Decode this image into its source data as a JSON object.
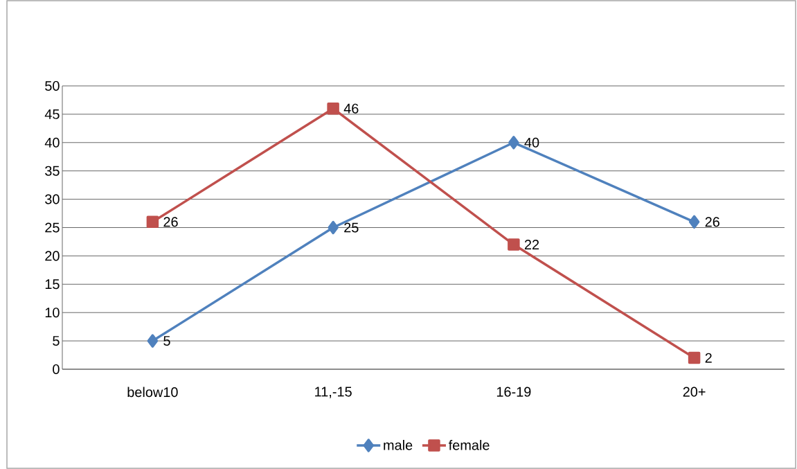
{
  "chart_data": {
    "type": "line",
    "categories": [
      "below10",
      "11,-15",
      "16-19",
      "20+"
    ],
    "series": [
      {
        "name": "male",
        "color": "#4f81bd",
        "marker": "diamond",
        "values": [
          5,
          25,
          40,
          26
        ]
      },
      {
        "name": "female",
        "color": "#c0504d",
        "marker": "square",
        "values": [
          26,
          46,
          22,
          2
        ]
      }
    ],
    "ylim": [
      0,
      50
    ],
    "yticks": [
      0,
      5,
      10,
      15,
      20,
      25,
      30,
      35,
      40,
      45,
      50
    ],
    "grid": "y",
    "legend": "bottom",
    "data_labels": true
  }
}
